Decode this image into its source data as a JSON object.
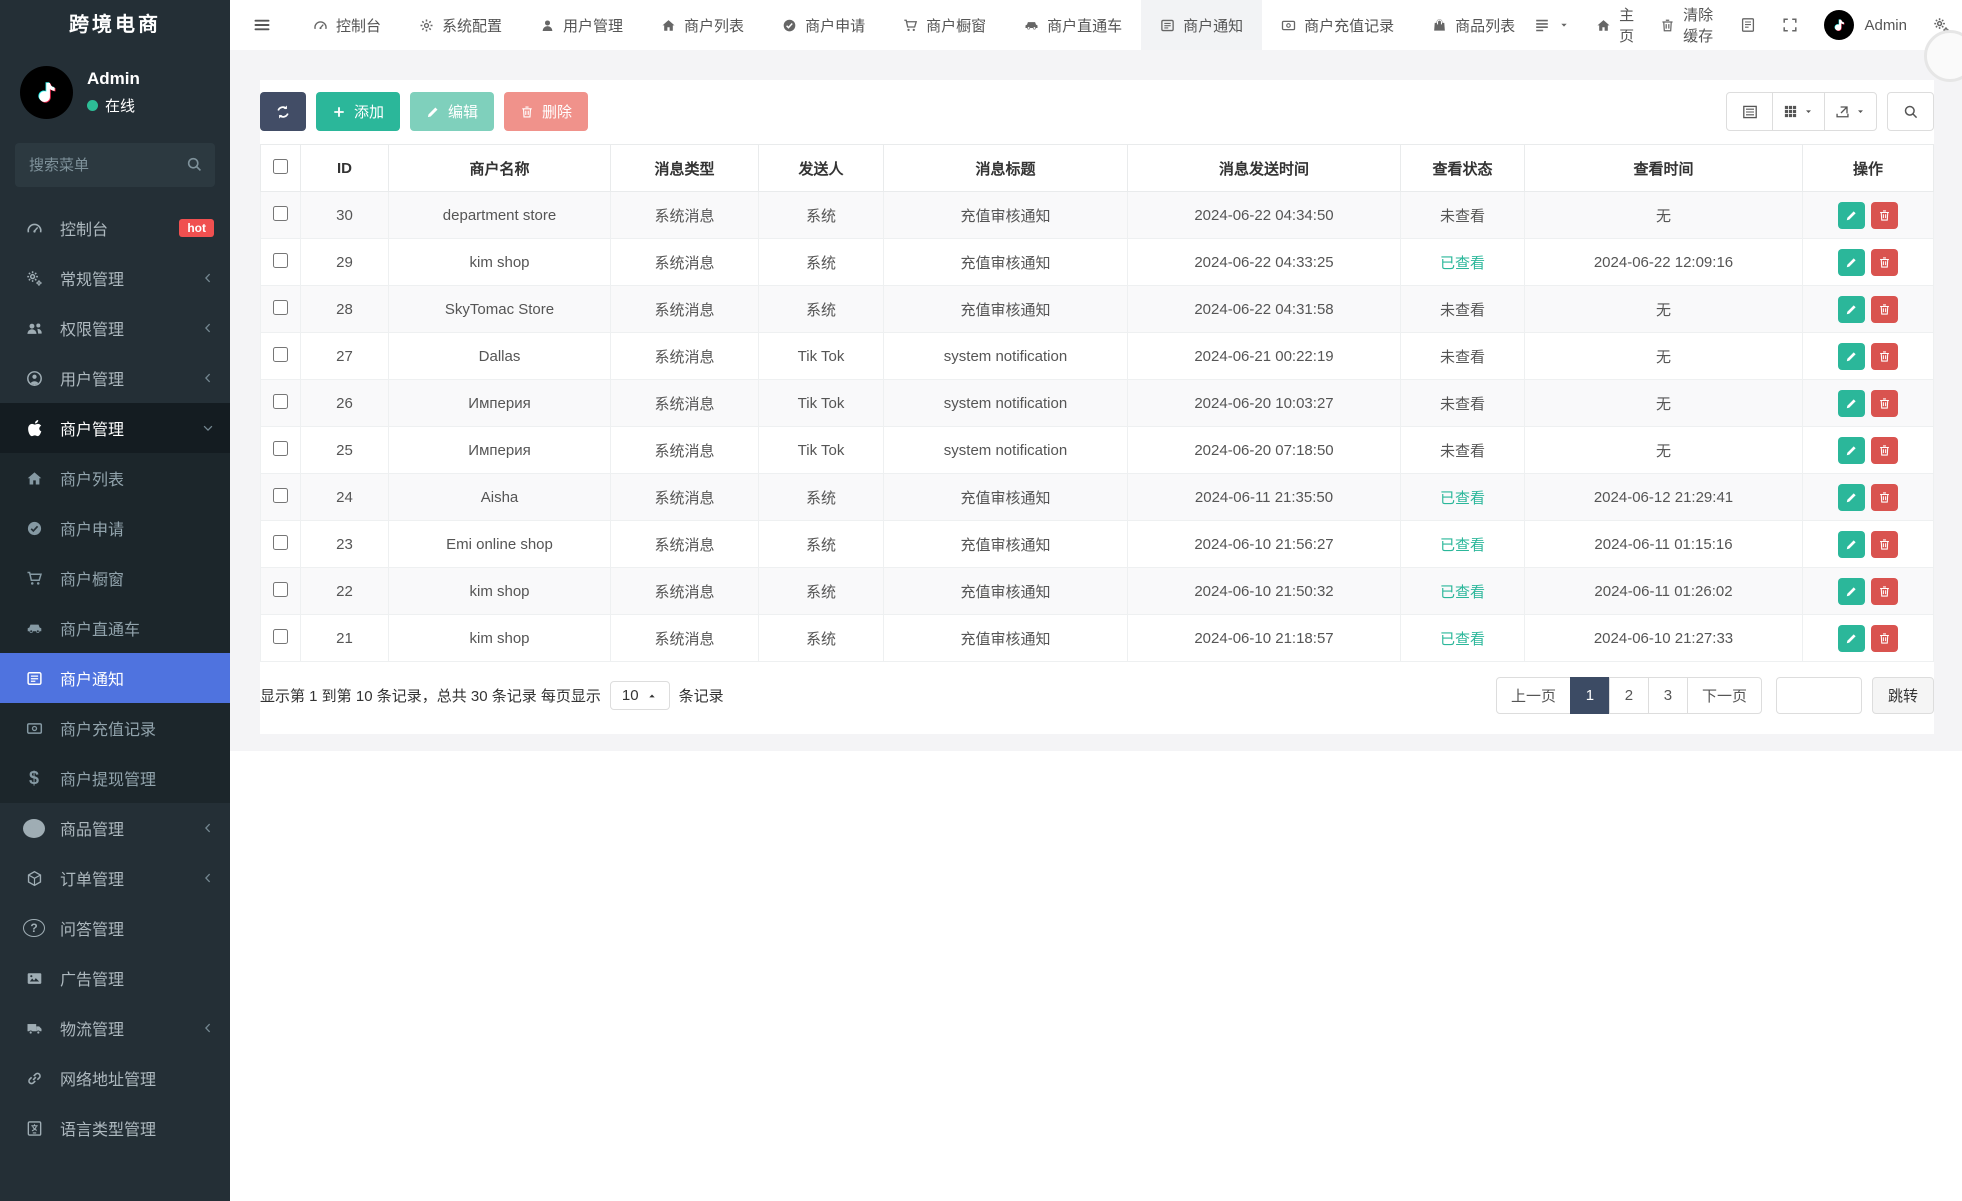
{
  "app": {
    "brand": "跨境电商"
  },
  "user": {
    "name": "Admin",
    "status_label": "在线",
    "status_color": "#2dbd96"
  },
  "topnav": {
    "tabs": [
      {
        "key": "dashboard",
        "label": "控制台",
        "icon": "dashboard-icon"
      },
      {
        "key": "system-config",
        "label": "系统配置",
        "icon": "gear-icon"
      },
      {
        "key": "user-management",
        "label": "用户管理",
        "icon": "user-icon"
      },
      {
        "key": "merchant-list",
        "label": "商户列表",
        "icon": "home-icon"
      },
      {
        "key": "merchant-apply",
        "label": "商户申请",
        "icon": "check-circle-icon"
      },
      {
        "key": "merchant-showcase",
        "label": "商户橱窗",
        "icon": "cart-icon"
      },
      {
        "key": "merchant-through-train",
        "label": "商户直通车",
        "icon": "car-icon"
      },
      {
        "key": "merchant-notice",
        "label": "商户通知",
        "icon": "comment-icon",
        "active": true
      },
      {
        "key": "merchant-recharge-records",
        "label": "商户充值记录",
        "icon": "money-icon"
      },
      {
        "key": "product-list",
        "label": "商品列表",
        "icon": "bag-icon"
      }
    ],
    "right": {
      "home_label": "主页",
      "clear_cache_label": "清除缓存",
      "username": "Admin"
    }
  },
  "sidebar": {
    "search_placeholder": "搜索菜单",
    "items": [
      {
        "key": "dashboard",
        "label": "控制台",
        "icon": "dashboard-icon",
        "badge": "hot"
      },
      {
        "key": "general-management",
        "label": "常规管理",
        "icon": "gears-icon",
        "chevron": "left"
      },
      {
        "key": "permission-management",
        "label": "权限管理",
        "icon": "users-icon",
        "chevron": "left"
      },
      {
        "key": "user-management",
        "label": "用户管理",
        "icon": "user-circle-icon",
        "chevron": "left"
      },
      {
        "key": "merchant-management",
        "label": "商户管理",
        "icon": "apple-icon",
        "chevron": "down",
        "open": true
      },
      {
        "key": "merchant-list",
        "label": "商户列表",
        "icon": "home-icon",
        "sub": true
      },
      {
        "key": "merchant-apply",
        "label": "商户申请",
        "icon": "check-circle-icon",
        "sub": true
      },
      {
        "key": "merchant-showcase",
        "label": "商户橱窗",
        "icon": "cart-icon",
        "sub": true
      },
      {
        "key": "merchant-through-train",
        "label": "商户直通车",
        "icon": "car-icon",
        "sub": true
      },
      {
        "key": "merchant-notice",
        "label": "商户通知",
        "icon": "comment-icon",
        "sub": true,
        "active": true
      },
      {
        "key": "merchant-recharge-records",
        "label": "商户充值记录",
        "icon": "money-icon",
        "sub": true
      },
      {
        "key": "merchant-withdraw-management",
        "label": "商户提现管理",
        "icon": "dollar-icon",
        "sub": true
      },
      {
        "key": "product-management",
        "label": "商品管理",
        "icon": "product-icon",
        "chevron": "left"
      },
      {
        "key": "order-management",
        "label": "订单管理",
        "icon": "order-icon",
        "chevron": "left"
      },
      {
        "key": "qa-management",
        "label": "问答管理",
        "icon": "question-icon"
      },
      {
        "key": "ad-management",
        "label": "广告管理",
        "icon": "ad-icon"
      },
      {
        "key": "logistics-management",
        "label": "物流管理",
        "icon": "truck-icon",
        "chevron": "left"
      },
      {
        "key": "network-address-management",
        "label": "网络地址管理",
        "icon": "link-icon"
      },
      {
        "key": "language-type-management",
        "label": "语言类型管理",
        "icon": "language-icon"
      }
    ]
  },
  "toolbar": {
    "add_label": "添加",
    "edit_label": "编辑",
    "delete_label": "删除"
  },
  "table": {
    "columns": [
      {
        "key": "id",
        "label": "ID"
      },
      {
        "key": "merchant",
        "label": "商户名称"
      },
      {
        "key": "type",
        "label": "消息类型"
      },
      {
        "key": "sender",
        "label": "发送人"
      },
      {
        "key": "title",
        "label": "消息标题"
      },
      {
        "key": "sent-at",
        "label": "消息发送时间"
      },
      {
        "key": "status",
        "label": "查看状态"
      },
      {
        "key": "viewed-at",
        "label": "查看时间"
      },
      {
        "key": "actions",
        "label": "操作"
      }
    ],
    "rows": [
      {
        "id": "30",
        "merchant": "department store",
        "type": "系统消息",
        "sender": "系统",
        "title": "充值审核通知",
        "sent_at": "2024-06-22 04:34:50",
        "status": "未查看",
        "viewed": false,
        "viewed_at": "无"
      },
      {
        "id": "29",
        "merchant": "kim shop",
        "type": "系统消息",
        "sender": "系统",
        "title": "充值审核通知",
        "sent_at": "2024-06-22 04:33:25",
        "status": "已查看",
        "viewed": true,
        "viewed_at": "2024-06-22 12:09:16"
      },
      {
        "id": "28",
        "merchant": "SkyTomac Store",
        "type": "系统消息",
        "sender": "系统",
        "title": "充值审核通知",
        "sent_at": "2024-06-22 04:31:58",
        "status": "未查看",
        "viewed": false,
        "viewed_at": "无"
      },
      {
        "id": "27",
        "merchant": "Dallas",
        "type": "系统消息",
        "sender": "Tik Tok",
        "title": "system notification",
        "sent_at": "2024-06-21 00:22:19",
        "status": "未查看",
        "viewed": false,
        "viewed_at": "无"
      },
      {
        "id": "26",
        "merchant": "Империя",
        "type": "系统消息",
        "sender": "Tik Tok",
        "title": "system notification",
        "sent_at": "2024-06-20 10:03:27",
        "status": "未查看",
        "viewed": false,
        "viewed_at": "无"
      },
      {
        "id": "25",
        "merchant": "Империя",
        "type": "系统消息",
        "sender": "Tik Tok",
        "title": "system notification",
        "sent_at": "2024-06-20 07:18:50",
        "status": "未查看",
        "viewed": false,
        "viewed_at": "无"
      },
      {
        "id": "24",
        "merchant": "Aisha",
        "type": "系统消息",
        "sender": "系统",
        "title": "充值审核通知",
        "sent_at": "2024-06-11 21:35:50",
        "status": "已查看",
        "viewed": true,
        "viewed_at": "2024-06-12 21:29:41"
      },
      {
        "id": "23",
        "merchant": "Emi online shop",
        "type": "系统消息",
        "sender": "系统",
        "title": "充值审核通知",
        "sent_at": "2024-06-10 21:56:27",
        "status": "已查看",
        "viewed": true,
        "viewed_at": "2024-06-11 01:15:16"
      },
      {
        "id": "22",
        "merchant": "kim shop",
        "type": "系统消息",
        "sender": "系统",
        "title": "充值审核通知",
        "sent_at": "2024-06-10 21:50:32",
        "status": "已查看",
        "viewed": true,
        "viewed_at": "2024-06-11 01:26:02"
      },
      {
        "id": "21",
        "merchant": "kim shop",
        "type": "系统消息",
        "sender": "系统",
        "title": "充值审核通知",
        "sent_at": "2024-06-10 21:18:57",
        "status": "已查看",
        "viewed": true,
        "viewed_at": "2024-06-10 21:27:33"
      }
    ]
  },
  "pagination": {
    "summary_prefix": "显示第 1 到第 10 条记录，总共 30 条记录 每页显示",
    "page_size": "10",
    "summary_suffix": "条记录",
    "prev_label": "上一页",
    "pages": [
      "1",
      "2",
      "3"
    ],
    "active_page": "1",
    "next_label": "下一页",
    "jump_label": "跳转",
    "jump_value": ""
  },
  "colors": {
    "accent_green": "#2bb79a",
    "accent_red": "#d9534f",
    "active_blue": "#4f73df",
    "dark_navy": "#3c4b64",
    "badge_hot": "#f05050"
  }
}
